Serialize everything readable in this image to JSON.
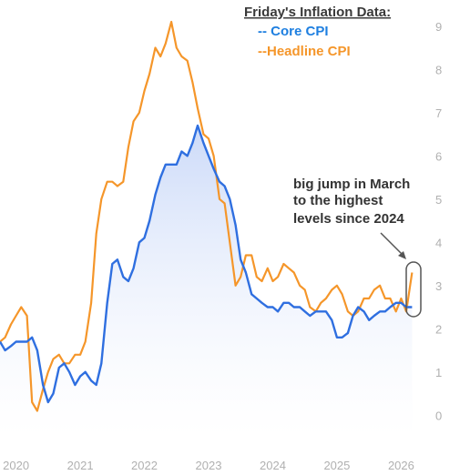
{
  "chart_data": {
    "type": "line",
    "title": "Friday's Inflation Data:",
    "legend": {
      "position": "top-right"
    },
    "series": [
      {
        "name": "-- Core CPI",
        "color": "#2f6fe0",
        "fill": "#dbe6fb",
        "x": [
          2019.75,
          2019.83,
          2019.92,
          2020.0,
          2020.08,
          2020.17,
          2020.25,
          2020.33,
          2020.42,
          2020.5,
          2020.58,
          2020.67,
          2020.75,
          2020.83,
          2020.92,
          2021.0,
          2021.08,
          2021.17,
          2021.25,
          2021.33,
          2021.42,
          2021.5,
          2021.58,
          2021.67,
          2021.75,
          2021.83,
          2021.92,
          2022.0,
          2022.08,
          2022.17,
          2022.25,
          2022.33,
          2022.42,
          2022.5,
          2022.58,
          2022.67,
          2022.75,
          2022.83,
          2022.92,
          2023.0,
          2023.08,
          2023.17,
          2023.25,
          2023.33,
          2023.42,
          2023.5,
          2023.58,
          2023.67,
          2023.75,
          2023.83,
          2023.92,
          2024.0,
          2024.08,
          2024.17,
          2024.25,
          2024.33,
          2024.42,
          2024.5,
          2024.58,
          2024.67,
          2024.75,
          2024.83,
          2024.92,
          2025.0,
          2025.08,
          2025.17,
          2025.25,
          2025.33,
          2025.42,
          2025.5,
          2025.58,
          2025.67,
          2025.75,
          2025.83,
          2025.92,
          2026.0,
          2026.08,
          2026.17
        ],
        "y": [
          1.7,
          1.5,
          1.6,
          1.7,
          1.7,
          1.7,
          1.8,
          1.5,
          0.7,
          0.3,
          0.5,
          1.1,
          1.2,
          1.0,
          0.7,
          0.9,
          1.0,
          0.8,
          0.7,
          1.2,
          2.6,
          3.5,
          3.6,
          3.2,
          3.1,
          3.4,
          4.0,
          4.1,
          4.5,
          5.1,
          5.5,
          5.8,
          5.8,
          5.8,
          6.1,
          6.0,
          6.3,
          6.7,
          6.3,
          6.0,
          5.7,
          5.4,
          5.3,
          5.0,
          4.4,
          3.6,
          3.3,
          2.8,
          2.7,
          2.6,
          2.5,
          2.5,
          2.4,
          2.6,
          2.6,
          2.5,
          2.5,
          2.4,
          2.3,
          2.4,
          2.4,
          2.4,
          2.2,
          1.8,
          1.8,
          1.9,
          2.3,
          2.5,
          2.4,
          2.2,
          2.3,
          2.4,
          2.4,
          2.5,
          2.6,
          2.6,
          2.5,
          2.5
        ]
      },
      {
        "name": "--Headline CPI",
        "color": "#f5962a",
        "x": [
          2019.75,
          2019.83,
          2019.92,
          2020.0,
          2020.08,
          2020.17,
          2020.25,
          2020.33,
          2020.42,
          2020.5,
          2020.58,
          2020.67,
          2020.75,
          2020.83,
          2020.92,
          2021.0,
          2021.08,
          2021.17,
          2021.25,
          2021.33,
          2021.42,
          2021.5,
          2021.58,
          2021.67,
          2021.75,
          2021.83,
          2021.92,
          2022.0,
          2022.08,
          2022.17,
          2022.25,
          2022.33,
          2022.42,
          2022.5,
          2022.58,
          2022.67,
          2022.75,
          2022.83,
          2022.92,
          2023.0,
          2023.08,
          2023.17,
          2023.25,
          2023.33,
          2023.42,
          2023.5,
          2023.58,
          2023.67,
          2023.75,
          2023.83,
          2023.92,
          2024.0,
          2024.08,
          2024.17,
          2024.25,
          2024.33,
          2024.42,
          2024.5,
          2024.58,
          2024.67,
          2024.75,
          2024.83,
          2024.92,
          2025.0,
          2025.08,
          2025.17,
          2025.25,
          2025.33,
          2025.42,
          2025.5,
          2025.58,
          2025.67,
          2025.75,
          2025.83,
          2025.92,
          2026.0,
          2026.08,
          2026.17
        ],
        "y": [
          1.7,
          1.8,
          2.1,
          2.3,
          2.5,
          2.3,
          0.3,
          0.1,
          0.6,
          1.0,
          1.3,
          1.4,
          1.2,
          1.2,
          1.4,
          1.4,
          1.7,
          2.6,
          4.2,
          5.0,
          5.4,
          5.4,
          5.3,
          5.4,
          6.2,
          6.8,
          7.0,
          7.5,
          7.9,
          8.5,
          8.3,
          8.6,
          9.1,
          8.5,
          8.3,
          8.2,
          7.7,
          7.1,
          6.5,
          6.4,
          6.0,
          5.0,
          4.9,
          4.0,
          3.0,
          3.2,
          3.7,
          3.7,
          3.2,
          3.1,
          3.4,
          3.1,
          3.2,
          3.5,
          3.4,
          3.3,
          3.0,
          2.9,
          2.5,
          2.4,
          2.6,
          2.7,
          2.9,
          3.0,
          2.8,
          2.4,
          2.3,
          2.4,
          2.7,
          2.7,
          2.9,
          3.0,
          2.7,
          2.7,
          2.4,
          2.7,
          2.4,
          3.3
        ]
      }
    ],
    "x_ticks": [
      2020,
      2021,
      2022,
      2023,
      2024,
      2025,
      2026
    ],
    "x_tick_labels": [
      "2020",
      "2021",
      "2022",
      "2023",
      "2024",
      "2025",
      "2026"
    ],
    "y_ticks": [
      0,
      1,
      2,
      3,
      4,
      5,
      6,
      7,
      8,
      9
    ],
    "y_tick_labels": [
      "0",
      "1",
      "2",
      "3",
      "4",
      "5",
      "6",
      "7",
      "8",
      "9"
    ],
    "xlim": [
      2019.75,
      2026.25
    ],
    "ylim": [
      -0.5,
      9.5
    ],
    "grid": false,
    "annotation": {
      "lines": [
        "big jump in March",
        "to the highest",
        "levels since 2024"
      ],
      "target": {
        "x": 2026.12,
        "y": 2.95
      }
    }
  }
}
